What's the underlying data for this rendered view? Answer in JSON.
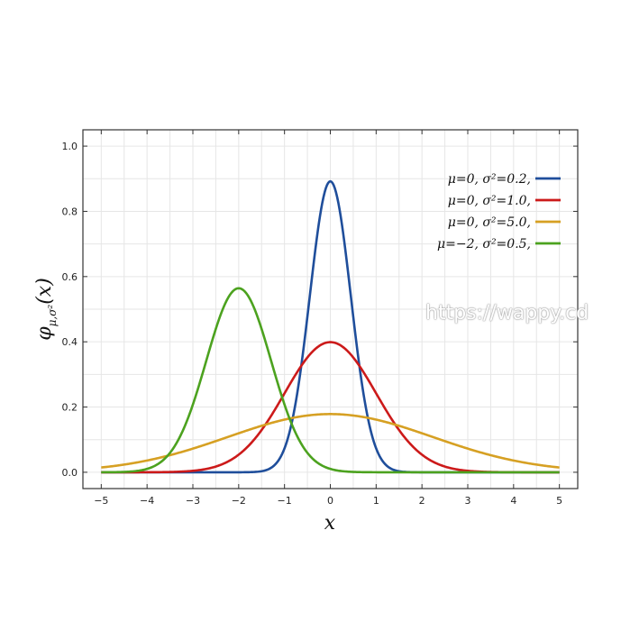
{
  "chart_data": {
    "type": "line",
    "title": "",
    "xlabel": "x",
    "ylabel": "φμ,σ²(x)",
    "ylabel_parts": {
      "phi": "φ",
      "sub": "μ,σ²",
      "arg": "(x)"
    },
    "xlim": [
      -5.4,
      5.4
    ],
    "ylim": [
      -0.05,
      1.05
    ],
    "xticks": [
      -5,
      -4,
      -3,
      -2,
      -1,
      0,
      1,
      2,
      3,
      4,
      5
    ],
    "xtick_labels": [
      "−5",
      "−4",
      "−3",
      "−2",
      "−1",
      "0",
      "1",
      "2",
      "3",
      "4",
      "5"
    ],
    "yticks": [
      0.0,
      0.2,
      0.4,
      0.6,
      0.8,
      1.0
    ],
    "ytick_labels": [
      "0.0",
      "0.2",
      "0.4",
      "0.6",
      "0.8",
      "1.0"
    ],
    "grid": true,
    "legend_position": "top-right",
    "series": [
      {
        "name": "μ=0,   σ²=0.2,",
        "mu": 0,
        "sigma2": 0.2,
        "color": "#1f4e9b"
      },
      {
        "name": "μ=0,   σ²=1.0,",
        "mu": 0,
        "sigma2": 1.0,
        "color": "#cc1a1a"
      },
      {
        "name": "μ=0,   σ²=5.0,",
        "mu": 0,
        "sigma2": 5.0,
        "color": "#d6a023"
      },
      {
        "name": "μ=−2, σ²=0.5,",
        "mu": -2,
        "sigma2": 0.5,
        "color": "#4ca21f"
      }
    ],
    "x_range": [
      -5,
      5
    ]
  },
  "watermark": "https://wappy.cd"
}
